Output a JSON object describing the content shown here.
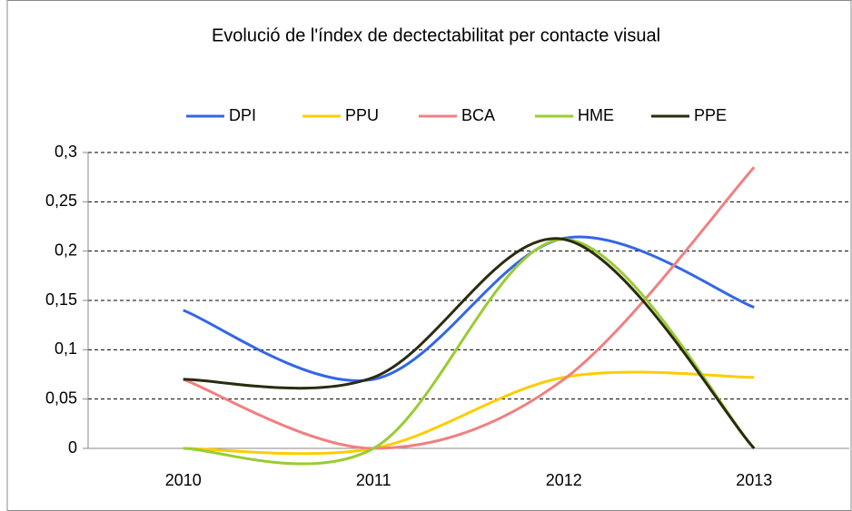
{
  "chart_data": {
    "type": "line",
    "title": "Evolució de l'índex de dectectabilitat per contacte visual",
    "categories": [
      "2010",
      "2011",
      "2012",
      "2013"
    ],
    "series": [
      {
        "name": "DPI",
        "color": "#3366e6",
        "values": [
          0.14,
          0.07,
          0.213,
          0.143
        ]
      },
      {
        "name": "PPU",
        "color": "#ffcc00",
        "values": [
          0,
          0,
          0.072,
          0.072
        ]
      },
      {
        "name": "BCA",
        "color": "#f08080",
        "values": [
          0.07,
          0,
          0.07,
          0.285
        ]
      },
      {
        "name": "HME",
        "color": "#99cc33",
        "values": [
          0,
          0,
          0.212,
          0
        ]
      },
      {
        "name": "PPE",
        "color": "#2b2b0f",
        "values": [
          0.07,
          0.072,
          0.212,
          0
        ]
      }
    ],
    "ylim": [
      0,
      0.3
    ],
    "yticks": [
      0,
      {
        "value": 0.05,
        "label": "0,05"
      },
      {
        "value": 0.1,
        "label": "0,1"
      },
      {
        "value": 0.15,
        "label": "0,15"
      },
      {
        "value": 0.2,
        "label": "0,2"
      },
      {
        "value": 0.25,
        "label": "0,25"
      },
      {
        "value": 0.3,
        "label": "0,3"
      }
    ],
    "grid": true,
    "smooth": true,
    "legend": "top"
  }
}
